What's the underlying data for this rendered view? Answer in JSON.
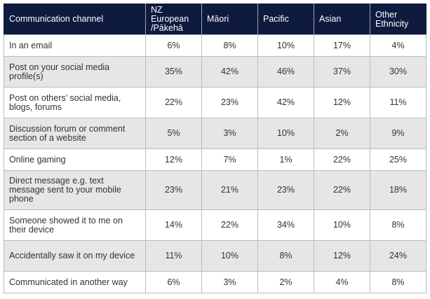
{
  "table": {
    "headers": [
      "Communication channel",
      "NZ European /Pākehā",
      "Māori",
      "Pacific",
      "Asian",
      "Other Ethnicity"
    ],
    "rows": [
      {
        "label": "In an email",
        "values": [
          "6%",
          "8%",
          "10%",
          "17%",
          "4%"
        ]
      },
      {
        "label": "Post on your social media profile(s)",
        "values": [
          "35%",
          "42%",
          "46%",
          "37%",
          "30%"
        ]
      },
      {
        "label": "Post on others’ social media, blogs, forums",
        "values": [
          "22%",
          "23%",
          "42%",
          "12%",
          "11%"
        ]
      },
      {
        "label": "Discussion forum or comment section of a website",
        "values": [
          "5%",
          "3%",
          "10%",
          "2%",
          "9%"
        ]
      },
      {
        "label": "Online gaming",
        "values": [
          "12%",
          "7%",
          "1%",
          "22%",
          "25%"
        ]
      },
      {
        "label": "Direct message e.g. text message sent to your mobile phone",
        "values": [
          "23%",
          "21%",
          "23%",
          "22%",
          "18%"
        ]
      },
      {
        "label": "Someone showed it to me on their device",
        "values": [
          "14%",
          "22%",
          "34%",
          "10%",
          "8%"
        ]
      },
      {
        "label": "Accidentally saw it on my device",
        "values": [
          "11%",
          "10%",
          "8%",
          "12%",
          "24%"
        ]
      },
      {
        "label": "Communicated in another way",
        "values": [
          "6%",
          "3%",
          "2%",
          "4%",
          "8%"
        ]
      }
    ]
  }
}
